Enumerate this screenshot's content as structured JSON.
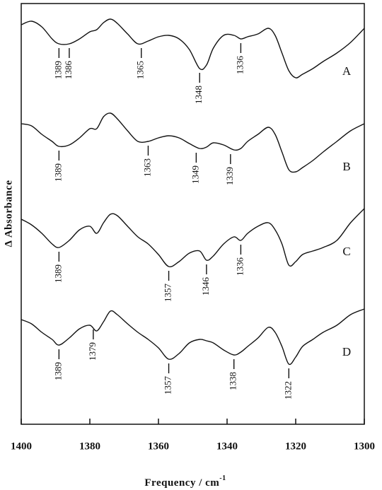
{
  "chart_data": {
    "type": "line",
    "xlabel": "Frequency / cm",
    "xlabel_sup": "-1",
    "ylabel": "Δ Absorbance",
    "xlim": [
      1400,
      1300
    ],
    "xticks": [
      1400,
      1380,
      1360,
      1340,
      1320,
      1300
    ],
    "ylim": [
      0,
      595
    ],
    "color": "#111111",
    "x": [
      1400,
      1397,
      1394,
      1391,
      1389,
      1386,
      1383,
      1380,
      1378,
      1376,
      1374,
      1372,
      1369,
      1366,
      1363,
      1360,
      1357,
      1354,
      1351,
      1348,
      1346,
      1344,
      1341,
      1338,
      1336,
      1334,
      1331,
      1328,
      1326,
      1324,
      1322,
      1320,
      1318,
      1315,
      1312,
      1308,
      1304,
      1300
    ],
    "series": [
      {
        "name": "A",
        "values": [
          565,
          570,
          562,
          545,
          538,
          538,
          545,
          555,
          558,
          568,
          573,
          567,
          552,
          538,
          542,
          548,
          550,
          545,
          530,
          503,
          508,
          532,
          550,
          550,
          545,
          548,
          552,
          560,
          550,
          525,
          500,
          490,
          495,
          503,
          513,
          525,
          540,
          560
        ]
      },
      {
        "name": "B",
        "values": [
          425,
          422,
          410,
          400,
          393,
          395,
          405,
          418,
          418,
          435,
          440,
          432,
          415,
          400,
          400,
          405,
          408,
          405,
          397,
          390,
          392,
          398,
          395,
          388,
          390,
          400,
          410,
          420,
          410,
          385,
          360,
          357,
          363,
          373,
          385,
          400,
          415,
          425
        ]
      },
      {
        "name": "C",
        "values": [
          290,
          282,
          270,
          255,
          250,
          260,
          275,
          280,
          270,
          285,
          297,
          295,
          280,
          265,
          255,
          240,
          223,
          230,
          242,
          245,
          232,
          238,
          255,
          265,
          260,
          270,
          280,
          285,
          275,
          255,
          225,
          230,
          240,
          245,
          250,
          260,
          285,
          305
        ]
      },
      {
        "name": "D",
        "values": [
          148,
          142,
          130,
          120,
          112,
          122,
          135,
          140,
          132,
          145,
          160,
          155,
          142,
          130,
          120,
          108,
          92,
          100,
          115,
          120,
          118,
          115,
          105,
          98,
          102,
          110,
          122,
          137,
          130,
          110,
          85,
          95,
          110,
          120,
          130,
          140,
          155,
          163
        ]
      }
    ],
    "annotations": [
      {
        "series": 0,
        "x": 1389,
        "label": "1389"
      },
      {
        "series": 0,
        "x": 1386,
        "label": "1386"
      },
      {
        "series": 0,
        "x": 1365,
        "label": "1365"
      },
      {
        "series": 0,
        "x": 1348,
        "label": "1348"
      },
      {
        "series": 0,
        "x": 1336,
        "label": "1336"
      },
      {
        "series": 1,
        "x": 1389,
        "label": "1389"
      },
      {
        "series": 1,
        "x": 1363,
        "label": "1363"
      },
      {
        "series": 1,
        "x": 1349,
        "label": "1349"
      },
      {
        "series": 1,
        "x": 1339,
        "label": "1339"
      },
      {
        "series": 2,
        "x": 1389,
        "label": "1389"
      },
      {
        "series": 2,
        "x": 1357,
        "label": "1357"
      },
      {
        "series": 2,
        "x": 1346,
        "label": "1346"
      },
      {
        "series": 2,
        "x": 1336,
        "label": "1336"
      },
      {
        "series": 3,
        "x": 1389,
        "label": "1389"
      },
      {
        "series": 3,
        "x": 1379,
        "label": "1379"
      },
      {
        "series": 3,
        "x": 1357,
        "label": "1357"
      },
      {
        "series": 3,
        "x": 1338,
        "label": "1338"
      },
      {
        "series": 3,
        "x": 1322,
        "label": "1322"
      }
    ]
  }
}
